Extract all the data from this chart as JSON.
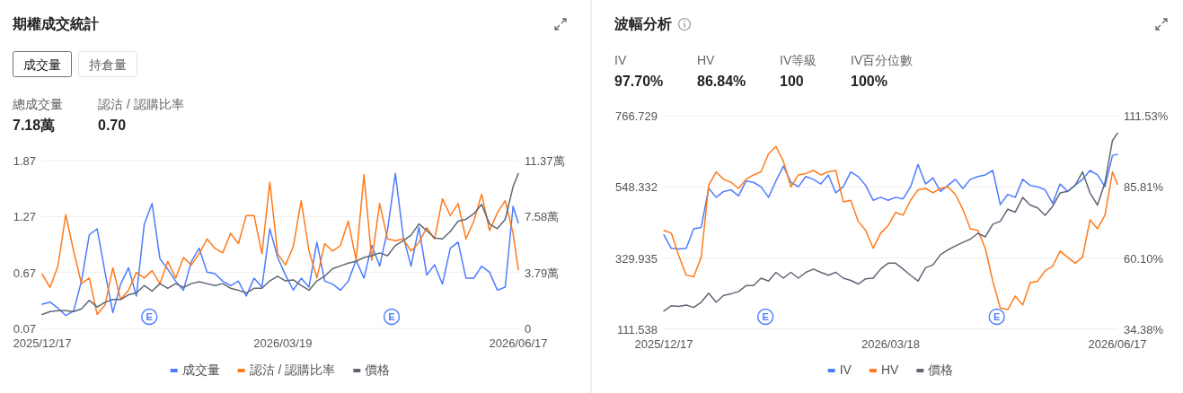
{
  "chart_data": [
    {
      "type": "line",
      "title": "期權成交統計",
      "x": [
        "2025-12-17",
        "2025-12-20",
        "2025-12-23",
        "2025-12-26",
        "2025-12-29",
        "2026-01-01",
        "2026-01-04",
        "2026-01-07",
        "2026-01-10",
        "2026-01-13",
        "2026-01-16",
        "2026-01-19",
        "2026-01-22",
        "2026-01-25",
        "2026-01-28",
        "2026-01-31",
        "2026-02-03",
        "2026-02-06",
        "2026-02-09",
        "2026-02-12",
        "2026-02-15",
        "2026-02-18",
        "2026-02-21",
        "2026-02-24",
        "2026-02-27",
        "2026-03-02",
        "2026-03-05",
        "2026-03-08",
        "2026-03-11",
        "2026-03-14",
        "2026-03-17",
        "2026-03-20",
        "2026-03-23",
        "2026-03-26",
        "2026-03-29",
        "2026-04-01",
        "2026-04-04",
        "2026-04-07",
        "2026-04-10",
        "2026-04-13",
        "2026-04-16",
        "2026-04-19",
        "2026-04-22",
        "2026-04-25",
        "2026-04-28",
        "2026-05-01",
        "2026-05-04",
        "2026-05-07",
        "2026-05-10",
        "2026-05-13",
        "2026-05-16",
        "2026-05-19",
        "2026-05-22",
        "2026-05-25",
        "2026-05-28",
        "2026-05-31",
        "2026-06-03",
        "2026-06-06",
        "2026-06-09",
        "2026-06-12",
        "2026-06-15",
        "2026-06-17"
      ],
      "xlim": [
        "2025-12-17",
        "2026-06-17"
      ],
      "xticks": [
        {
          "value": "2025-12-17",
          "label": "2025/12/17"
        },
        {
          "value": "2026-03-19",
          "label": "2026/03/19"
        },
        {
          "value": "2026-06-17",
          "label": "2026/06/17"
        }
      ],
      "ylim": [
        0.07,
        1.87
      ],
      "yticks": [
        0.07,
        0.67,
        1.27,
        1.87
      ],
      "y2lim": [
        0,
        11.37
      ],
      "y2ticks": [
        0,
        {
          "value": 3.79,
          "label": "3.79萬"
        },
        {
          "value": 7.58,
          "label": "7.58萬"
        },
        {
          "value": 11.37,
          "label": "11.37萬"
        }
      ],
      "grid": "y",
      "legend": "bottom",
      "marker": "none",
      "line_style": "solid",
      "series": [
        {
          "name": "成交量",
          "color": "#4d7cfe",
          "axis": "y2",
          "values": [
            1.64,
            1.78,
            1.38,
            0.87,
            1.18,
            3.2,
            6.34,
            6.75,
            3.81,
            1.07,
            3.0,
            4.11,
            2.19,
            7.05,
            8.47,
            4.72,
            4.01,
            3.2,
            2.59,
            4.52,
            5.43,
            3.81,
            3.71,
            3.2,
            2.9,
            3.2,
            2.19,
            3.4,
            2.8,
            6.75,
            4.82,
            3.61,
            2.59,
            3.4,
            2.8,
            5.84,
            3.2,
            3.0,
            2.59,
            3.2,
            4.62,
            3.4,
            5.63,
            4.22,
            6.65,
            10.5,
            6.24,
            4.22,
            6.85,
            3.61,
            4.32,
            3.0,
            5.43,
            5.84,
            3.4,
            3.4,
            4.22,
            3.81,
            2.59,
            2.8,
            8.27,
            7.15
          ]
        },
        {
          "name": "認沽 / 認購比率",
          "color": "#ff7a1a",
          "axis": "y",
          "values": [
            0.65,
            0.51,
            0.74,
            1.29,
            0.9,
            0.55,
            0.61,
            0.22,
            0.32,
            0.72,
            0.38,
            0.48,
            0.67,
            0.61,
            0.69,
            0.55,
            0.79,
            0.61,
            0.83,
            0.75,
            0.87,
            1.03,
            0.93,
            0.88,
            1.09,
            0.98,
            1.28,
            1.28,
            0.87,
            1.64,
            0.87,
            0.75,
            0.95,
            1.44,
            0.9,
            0.61,
            0.98,
            0.9,
            0.96,
            1.22,
            0.8,
            1.72,
            0.8,
            1.41,
            1.03,
            1.01,
            1.03,
            0.9,
            0.99,
            1.15,
            1.03,
            1.46,
            1.28,
            1.41,
            1.03,
            1.22,
            1.51,
            1.12,
            1.31,
            1.44,
            1.09,
            0.7
          ]
        },
        {
          "name": "價格",
          "color": "#5f6775",
          "axis": "y",
          "values": [
            0.22,
            0.25,
            0.26,
            0.26,
            0.25,
            0.28,
            0.37,
            0.3,
            0.35,
            0.38,
            0.38,
            0.43,
            0.45,
            0.53,
            0.47,
            0.55,
            0.5,
            0.55,
            0.51,
            0.55,
            0.57,
            0.55,
            0.53,
            0.55,
            0.5,
            0.48,
            0.45,
            0.5,
            0.5,
            0.58,
            0.63,
            0.58,
            0.59,
            0.53,
            0.48,
            0.58,
            0.63,
            0.71,
            0.74,
            0.77,
            0.79,
            0.83,
            0.85,
            0.88,
            0.85,
            0.96,
            1.01,
            1.07,
            1.19,
            1.12,
            1.04,
            1.03,
            1.11,
            1.22,
            1.24,
            1.3,
            1.4,
            1.19,
            1.14,
            1.24,
            1.59,
            1.73
          ]
        }
      ],
      "annotations": [
        "成交量",
        "持倉量",
        "總成交量",
        "7.18萬",
        "認沽 / 認購比率",
        "0.70",
        "E",
        "E"
      ]
    },
    {
      "type": "line",
      "title": "波幅分析",
      "x": [
        "2025-12-17",
        "2025-12-20",
        "2025-12-23",
        "2025-12-26",
        "2025-12-29",
        "2026-01-01",
        "2026-01-04",
        "2026-01-07",
        "2026-01-10",
        "2026-01-13",
        "2026-01-16",
        "2026-01-19",
        "2026-01-22",
        "2026-01-25",
        "2026-01-28",
        "2026-01-31",
        "2026-02-03",
        "2026-02-06",
        "2026-02-09",
        "2026-02-12",
        "2026-02-15",
        "2026-02-18",
        "2026-02-21",
        "2026-02-24",
        "2026-02-27",
        "2026-03-02",
        "2026-03-05",
        "2026-03-08",
        "2026-03-11",
        "2026-03-14",
        "2026-03-17",
        "2026-03-20",
        "2026-03-23",
        "2026-03-26",
        "2026-03-29",
        "2026-04-01",
        "2026-04-04",
        "2026-04-07",
        "2026-04-10",
        "2026-04-13",
        "2026-04-16",
        "2026-04-19",
        "2026-04-22",
        "2026-04-25",
        "2026-04-28",
        "2026-05-01",
        "2026-05-04",
        "2026-05-07",
        "2026-05-10",
        "2026-05-13",
        "2026-05-16",
        "2026-05-19",
        "2026-05-22",
        "2026-05-25",
        "2026-05-28",
        "2026-05-31",
        "2026-06-03",
        "2026-06-06",
        "2026-06-09",
        "2026-06-12",
        "2026-06-15",
        "2026-06-17"
      ],
      "xlim": [
        "2025-12-17",
        "2026-06-17"
      ],
      "xticks": [
        {
          "value": "2025-12-17",
          "label": "2025/12/17"
        },
        {
          "value": "2026-03-18",
          "label": "2026/03/18"
        },
        {
          "value": "2026-06-17",
          "label": "2026/06/17"
        }
      ],
      "ylim": [
        111.538,
        766.729
      ],
      "yticks": [
        111.538,
        329.935,
        548.332,
        766.729
      ],
      "y2lim": [
        34.38,
        111.53
      ],
      "y2ticks": [
        {
          "value": 34.38,
          "label": "34.38%"
        },
        {
          "value": 60.1,
          "label": "60.10%"
        },
        {
          "value": 85.81,
          "label": "85.81%"
        },
        {
          "value": 111.53,
          "label": "111.53%"
        }
      ],
      "grid": "y",
      "legend": "bottom",
      "marker": "none",
      "line_style": "solid",
      "series": [
        {
          "name": "IV",
          "color": "#4d7cfe",
          "axis": "y2",
          "values": [
            68.5,
            63.6,
            63.4,
            63.6,
            70.7,
            71.2,
            85.3,
            82.1,
            84.2,
            84.8,
            82.6,
            88.0,
            87.5,
            85.9,
            82.1,
            88.0,
            93.4,
            87.5,
            85.9,
            89.6,
            88.6,
            86.9,
            90.2,
            83.7,
            85.9,
            91.3,
            89.6,
            86.4,
            81.0,
            82.1,
            81.0,
            82.1,
            81.5,
            85.9,
            94.0,
            86.9,
            89.1,
            84.2,
            86.4,
            88.6,
            85.3,
            88.6,
            89.6,
            90.2,
            91.8,
            79.4,
            83.1,
            82.1,
            88.6,
            86.4,
            85.9,
            84.8,
            79.9,
            86.9,
            84.2,
            86.4,
            88.6,
            91.8,
            90.2,
            85.9,
            97.2,
            97.7
          ]
        },
        {
          "name": "HV",
          "color": "#ff7a1a",
          "axis": "y2",
          "values": [
            70.1,
            69.1,
            60.9,
            53.9,
            53.3,
            60.4,
            86.4,
            91.3,
            88.6,
            87.5,
            85.3,
            88.6,
            90.2,
            91.3,
            97.8,
            100.5,
            95.1,
            85.9,
            90.2,
            90.7,
            91.8,
            90.2,
            91.3,
            91.8,
            80.4,
            81.0,
            73.4,
            70.1,
            63.6,
            69.1,
            71.8,
            76.6,
            75.6,
            81.0,
            84.8,
            85.3,
            83.7,
            85.3,
            85.9,
            83.1,
            77.7,
            70.7,
            70.1,
            63.6,
            51.7,
            42.0,
            41.4,
            46.3,
            43.1,
            51.2,
            51.7,
            55.5,
            57.1,
            62.6,
            60.4,
            58.2,
            60.4,
            73.9,
            70.7,
            75.6,
            91.3,
            86.8
          ]
        },
        {
          "name": "價格",
          "color": "#5f6775",
          "axis": "y",
          "values": [
            167,
            183,
            181,
            185,
            178,
            194,
            222,
            194,
            215,
            220,
            227,
            245,
            245,
            268,
            259,
            286,
            268,
            286,
            268,
            286,
            296,
            286,
            277,
            286,
            268,
            261,
            250,
            266,
            268,
            296,
            314,
            314,
            296,
            277,
            259,
            300,
            309,
            340,
            355,
            367,
            378,
            388,
            406,
            395,
            434,
            443,
            480,
            471,
            516,
            493,
            484,
            461,
            489,
            530,
            535,
            553,
            595,
            530,
            493,
            562,
            691,
            714
          ]
        }
      ],
      "annotations": [
        "IV",
        "97.70%",
        "HV",
        "86.84%",
        "IV等級",
        "100",
        "IV百分位數",
        "100%",
        "E",
        "E"
      ]
    }
  ]
}
